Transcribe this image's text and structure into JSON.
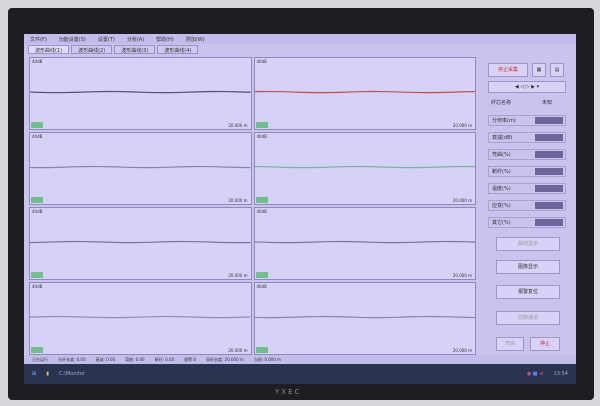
{
  "menu": [
    "文件(F)",
    "功能设置(S)",
    "设置(T)",
    "分析(A)",
    "帮助(H)",
    "附加(W)"
  ],
  "tabs": [
    "波形曲线(1)",
    "波形曲线(2)",
    "波形曲线(3)",
    "波形曲线(4)"
  ],
  "panels": [
    {
      "db": "40dB",
      "dist": "20.000 m",
      "color": "#55536a"
    },
    {
      "db": "40dB",
      "dist": "20.000 m",
      "color": "#8a85b0"
    },
    {
      "db": "40dB",
      "dist": "20.000 m",
      "color": "#7a759e"
    },
    {
      "db": "40dB",
      "dist": "20.000 m",
      "color": "#9a88b0"
    },
    {
      "db": "40dB",
      "dist": "20.000 m",
      "color": "#c0504d"
    },
    {
      "db": "40dB",
      "dist": "20.000 m",
      "color": "#7fae9a"
    },
    {
      "db": "40dB",
      "dist": "20.000 m",
      "color": "#7a759e"
    },
    {
      "db": "40dB",
      "dist": "20.000 m",
      "color": "#8a85b0"
    }
  ],
  "side": {
    "stop_collect": "停止采集",
    "fiber_label": "纤芯名称",
    "fiber_value": "未知",
    "params": [
      "分辨率(m)",
      "衰减(dB)",
      "弯曲(%)",
      "断纤(%)",
      "温度(%)",
      "应变(%)",
      "其它(%)"
    ],
    "buttons": [
      "曲线显示",
      "图像显示",
      "报警复位",
      "切换通道"
    ],
    "start": "开启",
    "stop": "停止"
  },
  "status": [
    "正在运行",
    "光纤长度: 0.00",
    "衰减: 0.00",
    "弯曲: 0.00",
    "断纤: 0.00",
    "报警:0",
    "采样长度: 20.000 m",
    "当前: 0.000 m"
  ],
  "taskbar": {
    "app": "C:\\Monitor",
    "time": "13:54"
  },
  "brand": "YXEC"
}
